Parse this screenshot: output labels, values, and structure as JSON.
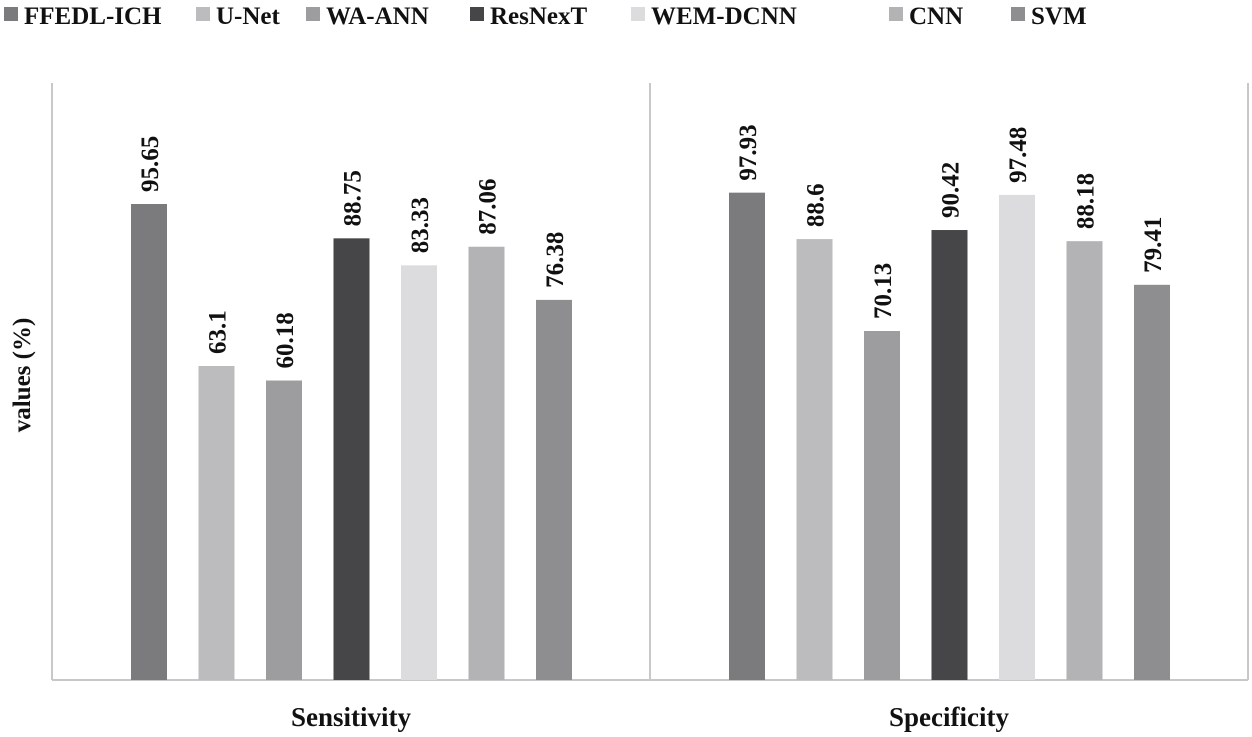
{
  "chart_data": {
    "type": "bar",
    "title": "",
    "xlabel": "",
    "ylabel": "values (%)",
    "ylim": [
      0,
      100
    ],
    "grid": false,
    "legend_position": "top",
    "categories": [
      "Sensitivity",
      "Specificity"
    ],
    "series": [
      {
        "name": "FFEDL-ICH",
        "values": [
          95.65,
          97.93
        ],
        "color": "#7b7b7d"
      },
      {
        "name": "U-Net",
        "values": [
          63.1,
          88.6
        ],
        "color": "#bcbcbe"
      },
      {
        "name": "WA-ANN",
        "values": [
          60.18,
          70.13
        ],
        "color": "#9d9da0"
      },
      {
        "name": "ResNexT",
        "values": [
          88.75,
          90.42
        ],
        "color": "#464648"
      },
      {
        "name": "WEM-DCNN",
        "values": [
          83.33,
          97.48
        ],
        "color": "#dcdcde"
      },
      {
        "name": "CNN",
        "values": [
          87.06,
          88.18
        ],
        "color": "#b3b3b5"
      },
      {
        "name": "SVM",
        "values": [
          76.38,
          79.41
        ],
        "color": "#8e8e91"
      }
    ]
  }
}
